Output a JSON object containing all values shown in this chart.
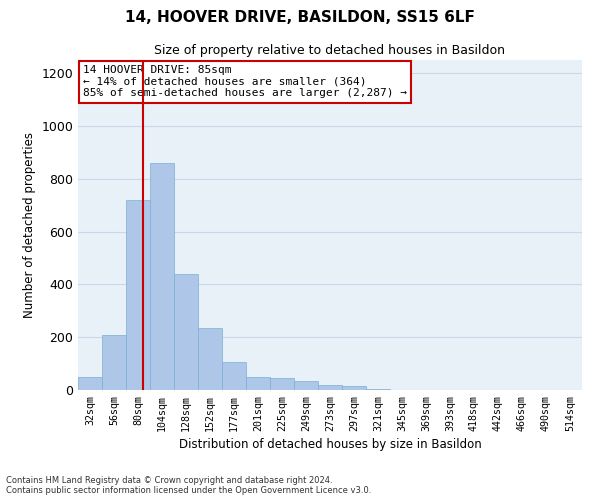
{
  "title1": "14, HOOVER DRIVE, BASILDON, SS15 6LF",
  "title2": "Size of property relative to detached houses in Basildon",
  "xlabel": "Distribution of detached houses by size in Basildon",
  "ylabel": "Number of detached properties",
  "footnote1": "Contains HM Land Registry data © Crown copyright and database right 2024.",
  "footnote2": "Contains public sector information licensed under the Open Government Licence v3.0.",
  "categories": [
    "32sqm",
    "56sqm",
    "80sqm",
    "104sqm",
    "128sqm",
    "152sqm",
    "177sqm",
    "201sqm",
    "225sqm",
    "249sqm",
    "273sqm",
    "297sqm",
    "321sqm",
    "345sqm",
    "369sqm",
    "393sqm",
    "418sqm",
    "442sqm",
    "466sqm",
    "490sqm",
    "514sqm"
  ],
  "values": [
    50,
    210,
    720,
    860,
    440,
    235,
    105,
    50,
    47,
    33,
    20,
    14,
    5,
    0,
    0,
    0,
    0,
    0,
    0,
    0,
    0
  ],
  "bar_color": "#aec6e8",
  "bar_edge_color": "#7aafd4",
  "annotation_text": "14 HOOVER DRIVE: 85sqm\n← 14% of detached houses are smaller (364)\n85% of semi-detached houses are larger (2,287) →",
  "annotation_box_color": "#ffffff",
  "annotation_box_edge": "#cc0000",
  "vline_color": "#cc0000",
  "ylim": [
    0,
    1250
  ],
  "yticks": [
    0,
    200,
    400,
    600,
    800,
    1000,
    1200
  ],
  "grid_color": "#c8d8e8",
  "bg_color": "#e8f0f8"
}
